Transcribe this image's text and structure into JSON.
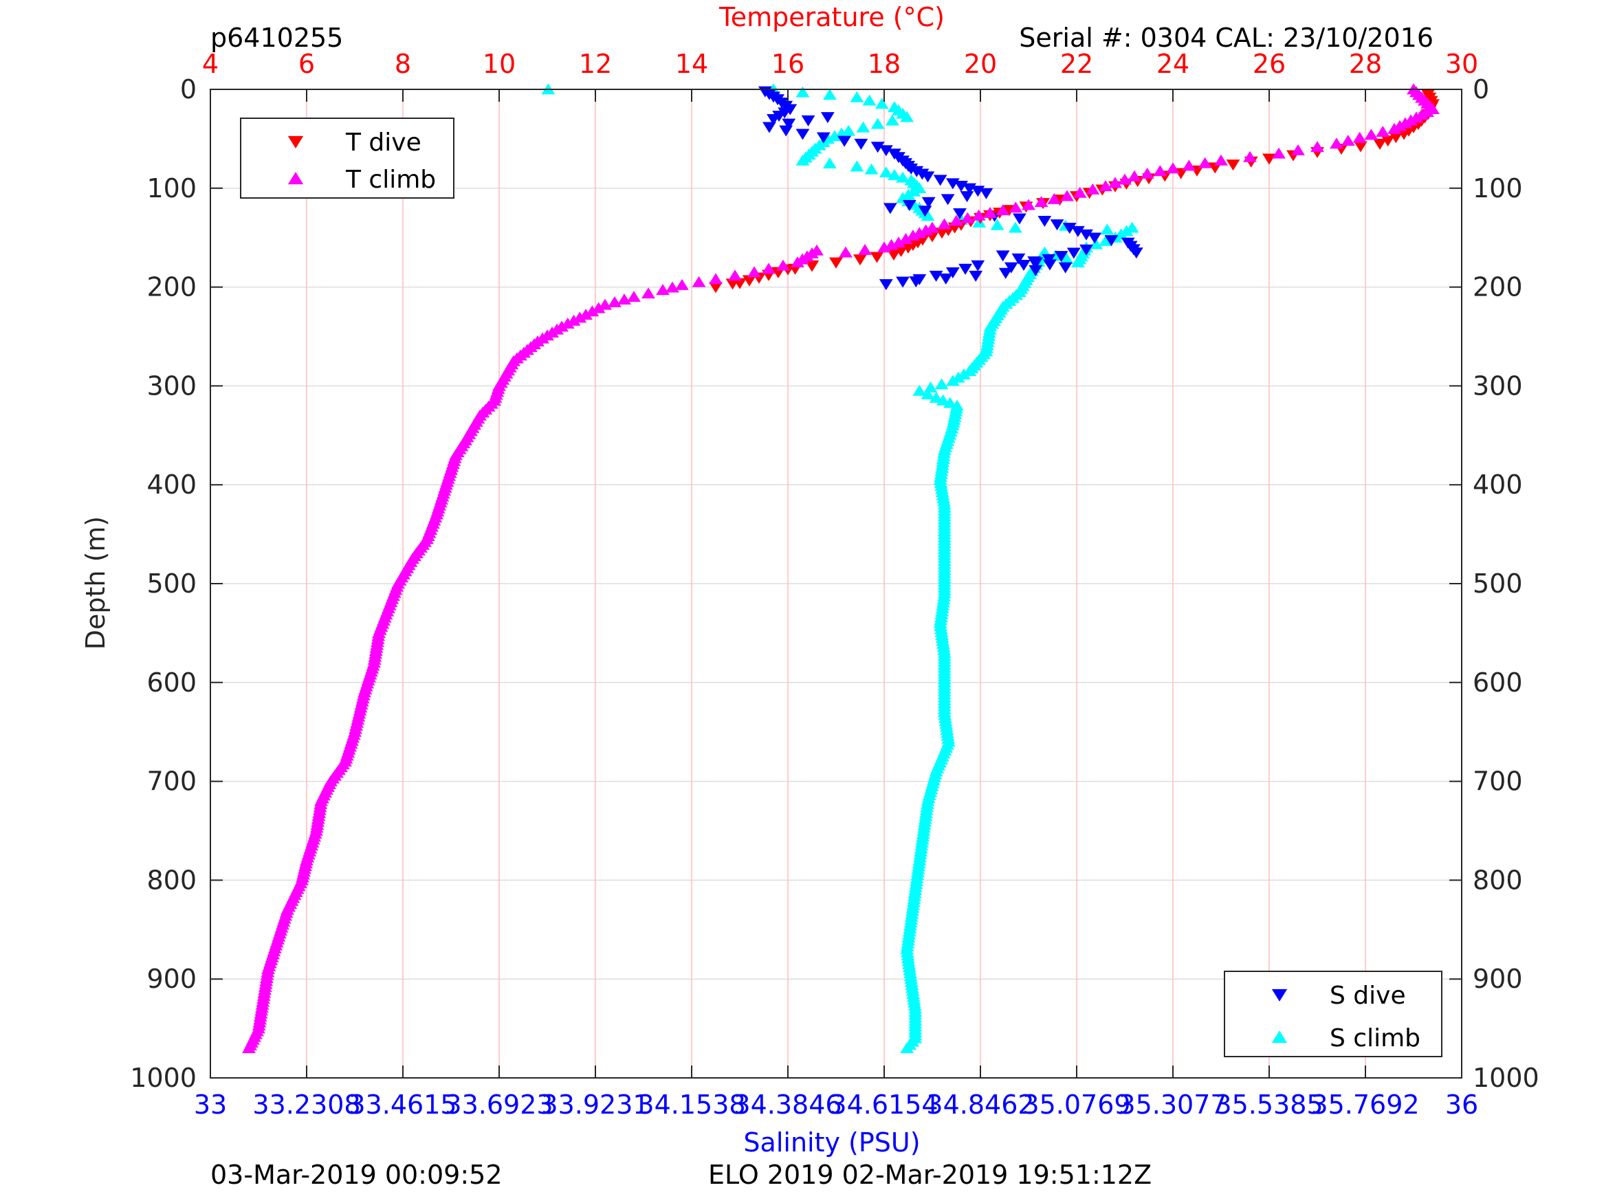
{
  "header": {
    "profile_id": "p6410255",
    "serial_cal": "Serial #: 0304  CAL: 23/10/2016"
  },
  "footer": {
    "left": "03-Mar-2019 00:09:52",
    "center": "ELO 2019 02-Mar-2019 19:51:12Z"
  },
  "colors": {
    "t_dive": "#ff0000",
    "t_climb": "#ff00ff",
    "s_dive": "#0000ff",
    "s_climb": "#00ffff",
    "temp_axis": "#ff0000",
    "sal_axis": "#0000ff",
    "temp_grid": "#ffbbbb",
    "depth_grid": "#dddddd"
  },
  "chart_data": {
    "type": "scatter",
    "y_axis": {
      "label": "Depth (m)",
      "range": [
        0,
        1000
      ],
      "reversed": true,
      "ticks": [
        "0",
        "100",
        "200",
        "300",
        "400",
        "500",
        "600",
        "700",
        "800",
        "900",
        "1000"
      ],
      "grid": true
    },
    "temperature_axis": {
      "label": "Temperature (°C)",
      "position": "top",
      "range": [
        4,
        30
      ],
      "ticks": [
        "4",
        "6",
        "8",
        "10",
        "12",
        "14",
        "16",
        "18",
        "20",
        "22",
        "24",
        "26",
        "28",
        "30"
      ],
      "grid": true
    },
    "salinity_axis": {
      "label": "Salinity (PSU)",
      "position": "bottom",
      "range": [
        33,
        36
      ],
      "ticks": [
        "33",
        "33.2308",
        "33.4615",
        "33.6923",
        "33.9231",
        "34.1538",
        "34.3846",
        "34.6154",
        "34.8462",
        "35.0769",
        "35.3077",
        "35.5385",
        "35.7692",
        "36"
      ]
    },
    "legends": [
      {
        "position": "top-left",
        "entries": [
          {
            "label": "T dive",
            "series": "t_dive",
            "marker": "triangle-down"
          },
          {
            "label": "T climb",
            "series": "t_climb",
            "marker": "triangle-up"
          }
        ]
      },
      {
        "position": "bottom-right",
        "entries": [
          {
            "label": "S dive",
            "series": "s_dive",
            "marker": "triangle-down"
          },
          {
            "label": "S climb",
            "series": "s_climb",
            "marker": "triangle-up"
          }
        ]
      }
    ],
    "series": {
      "t_dive": {
        "axis": "temperature",
        "marker": "triangle-down",
        "points": [
          [
            29.3,
            5
          ],
          [
            29.4,
            15
          ],
          [
            29.3,
            25
          ],
          [
            29.1,
            35
          ],
          [
            28.8,
            45
          ],
          [
            28.3,
            55
          ],
          [
            27.5,
            60
          ],
          [
            26,
            70
          ],
          [
            24.5,
            82
          ],
          [
            23.5,
            90
          ],
          [
            22.8,
            98
          ],
          [
            22,
            108
          ],
          [
            21.3,
            115
          ],
          [
            20.6,
            122
          ],
          [
            20,
            130
          ],
          [
            19.6,
            137
          ],
          [
            19.2,
            145
          ],
          [
            18.8,
            152
          ],
          [
            18.5,
            160
          ],
          [
            18.2,
            167
          ],
          [
            17.5,
            172
          ],
          [
            16.5,
            178
          ],
          [
            15.8,
            185
          ],
          [
            15.2,
            193
          ],
          [
            14.5,
            200
          ],
          [
            15,
            196
          ],
          [
            16,
            182
          ],
          [
            17,
            175
          ]
        ]
      },
      "t_climb": {
        "axis": "temperature",
        "marker": "triangle-up",
        "points": [
          [
            29,
            0
          ],
          [
            29.4,
            20
          ],
          [
            28.6,
            40
          ],
          [
            27.4,
            55
          ],
          [
            26.2,
            65
          ],
          [
            25,
            72
          ],
          [
            24,
            80
          ],
          [
            23.2,
            88
          ],
          [
            22.6,
            98
          ],
          [
            21.8,
            108
          ],
          [
            21,
            117
          ],
          [
            20.2,
            125
          ],
          [
            19.5,
            133
          ],
          [
            19,
            140
          ],
          [
            18.6,
            148
          ],
          [
            18.3,
            155
          ],
          [
            18,
            160
          ],
          [
            17.2,
            165
          ],
          [
            16.6,
            163
          ],
          [
            16.2,
            175
          ],
          [
            15.3,
            185
          ],
          [
            14.5,
            192
          ],
          [
            13.8,
            198
          ],
          [
            13.4,
            203
          ],
          [
            12.8,
            210
          ],
          [
            12.2,
            218
          ],
          [
            11.8,
            228
          ],
          [
            11.3,
            240
          ],
          [
            10.8,
            255
          ],
          [
            10.3,
            275
          ],
          [
            10,
            300
          ],
          [
            9.9,
            315
          ],
          [
            9.6,
            330
          ],
          [
            9.3,
            355
          ],
          [
            9.1,
            370
          ],
          [
            8.9,
            400
          ],
          [
            8.7,
            430
          ],
          [
            8.5,
            455
          ],
          [
            8.2,
            475
          ],
          [
            7.9,
            500
          ],
          [
            7.7,
            525
          ],
          [
            7.5,
            550
          ],
          [
            7.4,
            580
          ],
          [
            7.2,
            610
          ],
          [
            7.0,
            650
          ],
          [
            6.8,
            680
          ],
          [
            6.5,
            700
          ],
          [
            6.3,
            720
          ],
          [
            6.2,
            750
          ],
          [
            6.0,
            780
          ],
          [
            5.9,
            800
          ],
          [
            5.6,
            830
          ],
          [
            5.4,
            860
          ],
          [
            5.2,
            890
          ],
          [
            5.1,
            920
          ],
          [
            5.0,
            950
          ],
          [
            4.8,
            970
          ]
        ]
      },
      "s_dive": {
        "axis": "salinity",
        "marker": "triangle-down",
        "points": [
          [
            34.33,
            2
          ],
          [
            34.36,
            10
          ],
          [
            34.39,
            20
          ],
          [
            34.35,
            30
          ],
          [
            34.48,
            28
          ],
          [
            34.34,
            38
          ],
          [
            34.42,
            45
          ],
          [
            34.52,
            52
          ],
          [
            34.6,
            58
          ],
          [
            34.64,
            65
          ],
          [
            34.66,
            72
          ],
          [
            34.68,
            80
          ],
          [
            34.72,
            88
          ],
          [
            34.78,
            95
          ],
          [
            34.82,
            100
          ],
          [
            34.86,
            105
          ],
          [
            34.63,
            120
          ],
          [
            34.88,
            128
          ],
          [
            35.0,
            133
          ],
          [
            35.06,
            140
          ],
          [
            35.12,
            150
          ],
          [
            35.2,
            155
          ],
          [
            35.22,
            165
          ],
          [
            35.1,
            162
          ],
          [
            34.98,
            175
          ],
          [
            34.92,
            180
          ],
          [
            34.84,
            178
          ],
          [
            34.78,
            185
          ],
          [
            34.7,
            192
          ],
          [
            34.62,
            197
          ],
          [
            35.05,
            180
          ],
          [
            34.9,
            168
          ]
        ]
      },
      "s_climb": {
        "axis": "salinity",
        "marker": "triangle-up",
        "points": [
          [
            33.81,
            0
          ],
          [
            34.35,
            0
          ],
          [
            34.42,
            3
          ],
          [
            34.55,
            8
          ],
          [
            34.64,
            18
          ],
          [
            34.67,
            28
          ],
          [
            34.6,
            35
          ],
          [
            34.53,
            42
          ],
          [
            34.48,
            50
          ],
          [
            34.45,
            60
          ],
          [
            34.42,
            72
          ],
          [
            34.55,
            78
          ],
          [
            34.62,
            84
          ],
          [
            34.68,
            92
          ],
          [
            34.7,
            100
          ],
          [
            34.66,
            110
          ],
          [
            34.7,
            120
          ],
          [
            34.72,
            128
          ],
          [
            34.8,
            132
          ],
          [
            34.93,
            140
          ],
          [
            35.05,
            138
          ],
          [
            35.15,
            142
          ],
          [
            35.21,
            140
          ],
          [
            35.17,
            150
          ],
          [
            35.1,
            160
          ],
          [
            35.08,
            175
          ],
          [
            35.0,
            165
          ],
          [
            34.96,
            190
          ],
          [
            34.94,
            205
          ],
          [
            34.9,
            220
          ],
          [
            34.87,
            240
          ],
          [
            34.86,
            265
          ],
          [
            34.82,
            285
          ],
          [
            34.78,
            295
          ],
          [
            34.7,
            305
          ],
          [
            34.74,
            312
          ],
          [
            34.79,
            320
          ],
          [
            34.78,
            340
          ],
          [
            34.76,
            365
          ],
          [
            34.75,
            395
          ],
          [
            34.76,
            420
          ],
          [
            34.76,
            450
          ],
          [
            34.76,
            480
          ],
          [
            34.76,
            510
          ],
          [
            34.75,
            540
          ],
          [
            34.76,
            570
          ],
          [
            34.76,
            600
          ],
          [
            34.76,
            630
          ],
          [
            34.77,
            660
          ],
          [
            34.74,
            690
          ],
          [
            34.72,
            720
          ],
          [
            34.71,
            750
          ],
          [
            34.7,
            780
          ],
          [
            34.69,
            810
          ],
          [
            34.68,
            840
          ],
          [
            34.67,
            870
          ],
          [
            34.68,
            900
          ],
          [
            34.69,
            930
          ],
          [
            34.69,
            960
          ],
          [
            34.67,
            970
          ]
        ]
      }
    }
  }
}
